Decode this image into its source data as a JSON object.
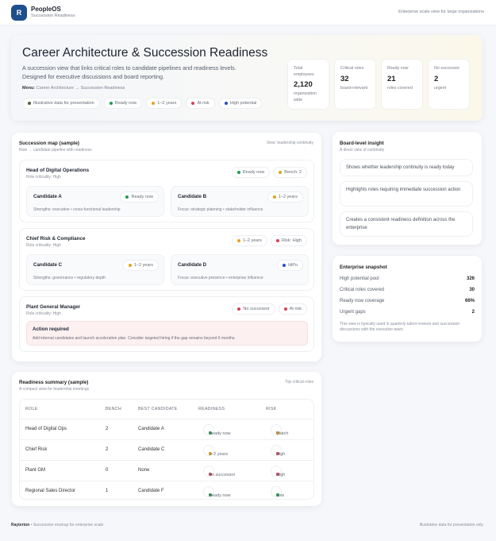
{
  "header": {
    "logo": "R",
    "app": "PeopleOS",
    "subtitle": "Succession Readiness",
    "right": "Enterprise scale view for large organizations"
  },
  "hero": {
    "title": "Career Architecture & Succession Readiness",
    "desc": "A succession view that links critical roles to candidate pipelines and readiness levels. Designed for executive discussions and board reporting.",
    "menu_label": "Menu:",
    "menu_path": "Career Architecture → Succession Readiness",
    "legend": [
      {
        "label": "Illustrative data for presentation",
        "color": "#5a5a3a"
      },
      {
        "label": "Ready now",
        "color": "#1e9e4a"
      },
      {
        "label": "1–2 years",
        "color": "#e6a21a"
      },
      {
        "label": "At risk",
        "color": "#d8404f"
      },
      {
        "label": "High potential",
        "color": "#2350c8"
      }
    ],
    "stats": [
      {
        "label": "Total employees",
        "value": "2,120",
        "note": "organization wide"
      },
      {
        "label": "Critical roles",
        "value": "32",
        "note": "board-relevant"
      },
      {
        "label": "Ready now",
        "value": "21",
        "note": "roles covered"
      },
      {
        "label": "No successor",
        "value": "2",
        "note": "urgent"
      }
    ]
  },
  "map": {
    "title": "Succession map (sample)",
    "subtitle": "Role → candidate pipeline with readiness",
    "link": "View: leadership continuity",
    "roles": [
      {
        "title": "Head of Digital Operations",
        "criticality": "Role criticality: High",
        "tags": [
          {
            "label": "Ready now",
            "color": "#1e9e4a"
          },
          {
            "label": "Bench: 2",
            "color": "#e6a21a"
          }
        ],
        "candidates": [
          {
            "name": "Candidate A",
            "status": "Ready now",
            "color": "#1e9e4a",
            "note": "Strengths: execution • cross-functional leadership"
          },
          {
            "name": "Candidate B",
            "status": "1–2 years",
            "color": "#e6a21a",
            "note": "Focus: strategic planning • stakeholder influence"
          }
        ]
      },
      {
        "title": "Chief Risk & Compliance",
        "criticality": "Role criticality: High",
        "tags": [
          {
            "label": "1–2 years",
            "color": "#e6a21a"
          },
          {
            "label": "Risk: High",
            "color": "#d8404f"
          }
        ],
        "candidates": [
          {
            "name": "Candidate C",
            "status": "1–2 years",
            "color": "#e6a21a",
            "note": "Strengths: governance • regulatory depth"
          },
          {
            "name": "Candidate D",
            "status": "HiPo",
            "color": "#2350c8",
            "note": "Focus: executive presence • enterprise influence"
          }
        ]
      },
      {
        "title": "Plant General Manager",
        "criticality": "Role criticality: High",
        "tags": [
          {
            "label": "No successor",
            "color": "#d8404f"
          },
          {
            "label": "At risk",
            "color": "#d8404f"
          }
        ],
        "action": {
          "title": "Action required",
          "text": "Add internal candidates and launch acceleration plan. Consider targeted hiring if the gap remains beyond 6 months."
        }
      }
    ]
  },
  "insight": {
    "title": "Board-level insight",
    "subtitle": "A direct view of continuity",
    "items": [
      "Shows whether leadership continuity is ready today",
      "Highlights roles requiring immediate succession action",
      "Creates a consistent readiness definition across the enterprise"
    ]
  },
  "snapshot": {
    "title": "Enterprise snapshot",
    "rows": [
      {
        "label": "High potential pool",
        "value": "326"
      },
      {
        "label": "Critical roles covered",
        "value": "30"
      },
      {
        "label": "Ready now coverage",
        "value": "66%"
      },
      {
        "label": "Urgent gaps",
        "value": "2"
      }
    ],
    "note": "This view is typically used in quarterly talent reviews and succession discussions with the executive team."
  },
  "summary": {
    "title": "Readiness summary (sample)",
    "subtitle": "A compact view for leadership meetings",
    "link": "Top critical roles",
    "columns": [
      "ROLE",
      "BENCH",
      "BEST CANDIDATE",
      "READINESS",
      "RISK"
    ],
    "rows": [
      {
        "role": "Head of Digital Ops",
        "bench": "2",
        "best": "Candidate A",
        "readiness": "Ready now",
        "rcolor": "#1e9e4a",
        "risk": "Watch",
        "kcolor": "#e6a21a"
      },
      {
        "role": "Chief Risk",
        "bench": "2",
        "best": "Candidate C",
        "readiness": "1–2 years",
        "rcolor": "#e6a21a",
        "risk": "High",
        "kcolor": "#d8404f"
      },
      {
        "role": "Plant GM",
        "bench": "0",
        "best": "None",
        "readiness": "No successor",
        "rcolor": "#d8404f",
        "risk": "High",
        "kcolor": "#d8404f"
      },
      {
        "role": "Regional Sales Director",
        "bench": "1",
        "best": "Candidate F",
        "readiness": "Ready now",
        "rcolor": "#1e9e4a",
        "risk": "Low",
        "kcolor": "#1e9e4a"
      }
    ]
  },
  "footer": {
    "brand": "Rayterton",
    "left": " • Succession mockup for enterprise scale",
    "right": "Illustrative data for presentation only"
  }
}
